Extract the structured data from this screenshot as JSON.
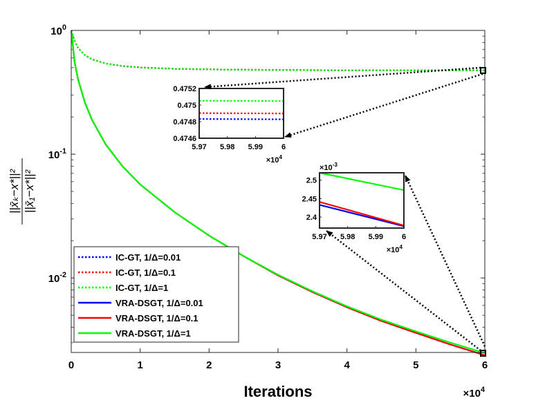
{
  "chart_data": {
    "type": "line",
    "xlabel": "Iterations",
    "ylabel": "||x̄k−x*||² / ||x̄1−x*||²",
    "x_exponent_label": "×10^4",
    "y_scale": "log",
    "xlim": [
      0,
      60000
    ],
    "ylim": [
      0.0025,
      1
    ],
    "x_ticks": [
      0,
      10000,
      20000,
      30000,
      40000,
      50000,
      60000
    ],
    "x_tick_labels": [
      "0",
      "1",
      "2",
      "3",
      "4",
      "5",
      "6"
    ],
    "y_ticks": [
      1,
      0.1,
      0.01
    ],
    "y_tick_labels": [
      "10^0",
      "10^-1",
      "10^-2"
    ],
    "legend_position": "bottom-left",
    "x": [
      0,
      500,
      1000,
      2000,
      3000,
      5000,
      7500,
      10000,
      15000,
      20000,
      25000,
      30000,
      35000,
      40000,
      45000,
      50000,
      55000,
      60000
    ],
    "series": [
      {
        "name": "IC-GT, 1/Δ=0.01",
        "color": "#0000ff",
        "style": "dotted",
        "values": [
          1,
          0.82,
          0.72,
          0.63,
          0.585,
          0.54,
          0.515,
          0.502,
          0.489,
          0.484,
          0.481,
          0.479,
          0.4775,
          0.4765,
          0.4757,
          0.4753,
          0.475,
          0.47483
        ]
      },
      {
        "name": "IC-GT, 1/Δ=0.1",
        "color": "#ff0000",
        "style": "dotted",
        "values": [
          1,
          0.82,
          0.72,
          0.63,
          0.585,
          0.54,
          0.515,
          0.502,
          0.489,
          0.484,
          0.481,
          0.479,
          0.4775,
          0.4765,
          0.4758,
          0.4754,
          0.4751,
          0.4749
        ]
      },
      {
        "name": "IC-GT, 1/Δ=1",
        "color": "#00ff00",
        "style": "dotted",
        "values": [
          1,
          0.82,
          0.72,
          0.63,
          0.585,
          0.54,
          0.515,
          0.502,
          0.489,
          0.484,
          0.481,
          0.479,
          0.4776,
          0.4766,
          0.4759,
          0.4755,
          0.4752,
          0.47505
        ]
      },
      {
        "name": "VRA-DSGT, 1/Δ=0.01",
        "color": "#0000ff",
        "style": "solid",
        "values": [
          1,
          0.55,
          0.4,
          0.26,
          0.19,
          0.12,
          0.079,
          0.057,
          0.034,
          0.022,
          0.015,
          0.0105,
          0.0077,
          0.0058,
          0.0045,
          0.0036,
          0.0029,
          0.002375
        ]
      },
      {
        "name": "VRA-DSGT, 1/Δ=0.1",
        "color": "#ff0000",
        "style": "solid",
        "values": [
          1,
          0.55,
          0.4,
          0.26,
          0.19,
          0.12,
          0.079,
          0.057,
          0.034,
          0.022,
          0.015,
          0.0105,
          0.0077,
          0.0058,
          0.0045,
          0.0036,
          0.0029,
          0.002375
        ]
      },
      {
        "name": "VRA-DSGT, 1/Δ=1",
        "color": "#00ff00",
        "style": "solid",
        "values": [
          1,
          0.55,
          0.4,
          0.26,
          0.19,
          0.12,
          0.079,
          0.057,
          0.034,
          0.022,
          0.015,
          0.0106,
          0.0078,
          0.0059,
          0.0046,
          0.0037,
          0.003,
          0.00247
        ]
      }
    ],
    "insets": [
      {
        "xlim": [
          59700,
          60000
        ],
        "ylim": [
          0.4746,
          0.4752
        ],
        "x_ticks": [
          59700,
          59800,
          59900,
          60000
        ],
        "x_tick_labels": [
          "5.97",
          "5.98",
          "5.99",
          "6"
        ],
        "y_ticks": [
          0.4746,
          0.4748,
          0.475,
          0.4752
        ],
        "y_tick_labels": [
          "0.4746",
          "0.4748",
          "0.475",
          "0.4752"
        ],
        "x_exponent_label": "×10^4",
        "y_exponent_label": "",
        "series": [
          {
            "color": "#0000ff",
            "style": "dotted",
            "x": [
              59700,
              60000
            ],
            "values": [
              0.474832,
              0.474828
            ]
          },
          {
            "color": "#ff0000",
            "style": "dotted",
            "x": [
              59700,
              60000
            ],
            "values": [
              0.474903,
              0.474898
            ]
          },
          {
            "color": "#00ff00",
            "style": "dotted",
            "x": [
              59700,
              60000
            ],
            "values": [
              0.475052,
              0.475048
            ]
          }
        ]
      },
      {
        "xlim": [
          59700,
          60000
        ],
        "ylim": [
          0.00237,
          0.00252
        ],
        "x_ticks": [
          59700,
          59800,
          59900,
          60000
        ],
        "x_tick_labels": [
          "5.97",
          "5.98",
          "5.99",
          "6"
        ],
        "y_ticks": [
          0.0024,
          0.00245,
          0.0025
        ],
        "y_tick_labels": [
          "2.4",
          "2.45",
          "2.5"
        ],
        "x_exponent_label": "×10^4",
        "y_exponent_label": "×10^-3",
        "series": [
          {
            "color": "#0000ff",
            "style": "solid",
            "x": [
              59700,
              60000
            ],
            "values": [
              0.002433,
              0.002375
            ]
          },
          {
            "color": "#ff0000",
            "style": "solid",
            "x": [
              59700,
              60000
            ],
            "values": [
              0.002441,
              0.002377
            ]
          },
          {
            "color": "#00ff00",
            "style": "solid",
            "x": [
              59700,
              60000
            ],
            "values": [
              0.00252,
              0.002473
            ]
          }
        ]
      }
    ]
  }
}
